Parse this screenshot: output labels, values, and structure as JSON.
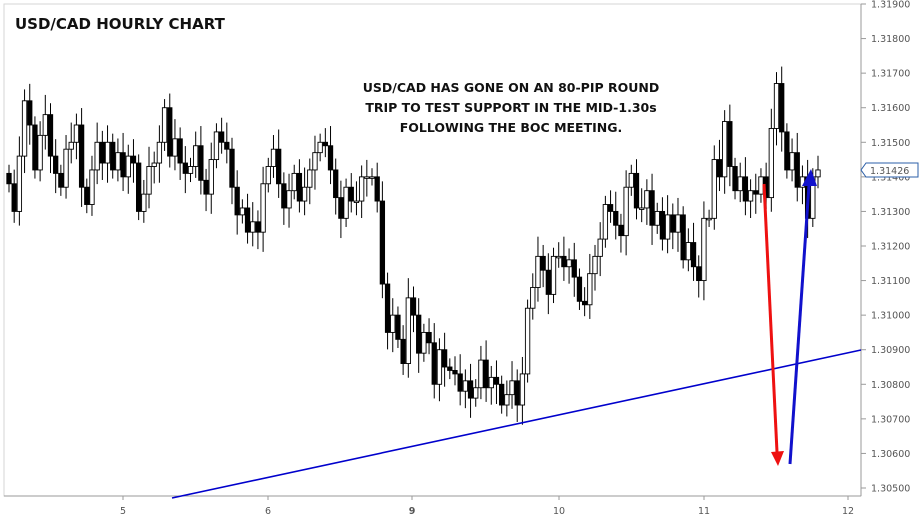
{
  "chart_data": {
    "type": "candlestick",
    "title": "USD/CAD HOURLY CHART",
    "annotation": [
      "USD/CAD HAS GONE ON AN 80-PIP ROUND",
      "TRIP TO TEST SUPPORT IN THE MID-1.30s",
      "FOLLOWING THE BOC MEETING."
    ],
    "x_ticks": [
      "5",
      "6",
      "9",
      "10",
      "11",
      "12"
    ],
    "ylim": [
      1.305,
      1.319
    ],
    "y_ticks": [
      "1.30500",
      "1.30600",
      "1.30700",
      "1.30800",
      "1.30900",
      "1.31000",
      "1.31100",
      "1.31200",
      "1.31300",
      "1.31400",
      "1.31500",
      "1.31600",
      "1.31700",
      "1.31800",
      "1.31900"
    ],
    "last_price": "1.31426",
    "colors": {
      "bull": "#ffffff",
      "bear": "#000000",
      "trendline": "#0000cc",
      "red_arrow": "#ee1111",
      "blue_arrow": "#1111cc",
      "price_marker": "#2b5fa8"
    },
    "candle_close": [
      1.3138,
      1.313,
      1.3146,
      1.3162,
      1.3155,
      1.3142,
      1.3152,
      1.3158,
      1.3146,
      1.3141,
      1.3137,
      1.3148,
      1.315,
      1.3155,
      1.3137,
      1.3132,
      1.3142,
      1.315,
      1.3144,
      1.315,
      1.3142,
      1.3147,
      1.314,
      1.3146,
      1.3144,
      1.313,
      1.3135,
      1.3143,
      1.3144,
      1.315,
      1.316,
      1.3146,
      1.3151,
      1.3144,
      1.3141,
      1.3143,
      1.3149,
      1.3139,
      1.3135,
      1.3145,
      1.3153,
      1.315,
      1.3148,
      1.3137,
      1.3129,
      1.3131,
      1.3124,
      1.3127,
      1.3124,
      1.3138,
      1.3143,
      1.3148,
      1.3138,
      1.3131,
      1.3136,
      1.3141,
      1.3133,
      1.3137,
      1.3142,
      1.3147,
      1.315,
      1.3149,
      1.3142,
      1.3134,
      1.3128,
      1.3137,
      1.3133,
      1.3133,
      1.314,
      1.314,
      1.314,
      1.3133,
      1.3109,
      1.3095,
      1.31,
      1.3093,
      1.3086,
      1.3105,
      1.31,
      1.3089,
      1.3095,
      1.3092,
      1.308,
      1.309,
      1.3085,
      1.3084,
      1.3083,
      1.3078,
      1.3081,
      1.3076,
      1.3079,
      1.3087,
      1.3079,
      1.3082,
      1.308,
      1.3074,
      1.3077,
      1.3081,
      1.3074,
      1.3083,
      1.3102,
      1.3108,
      1.3117,
      1.3113,
      1.3106,
      1.3117,
      1.3117,
      1.3114,
      1.3116,
      1.3111,
      1.3104,
      1.3103,
      1.3112,
      1.3117,
      1.3122,
      1.3132,
      1.313,
      1.3126,
      1.3123,
      1.3137,
      1.3141,
      1.3131,
      1.3131,
      1.3136,
      1.3126,
      1.313,
      1.3122,
      1.3129,
      1.3124,
      1.3129,
      1.3116,
      1.3121,
      1.3114,
      1.311,
      1.3128,
      1.3128,
      1.3145,
      1.314,
      1.3156,
      1.3143,
      1.3136,
      1.314,
      1.3133,
      1.3136,
      1.3135,
      1.314,
      1.3134,
      1.3154,
      1.3167,
      1.3153,
      1.3142,
      1.3147,
      1.3137,
      1.314,
      1.3128,
      1.314,
      1.3142
    ],
    "series": []
  }
}
